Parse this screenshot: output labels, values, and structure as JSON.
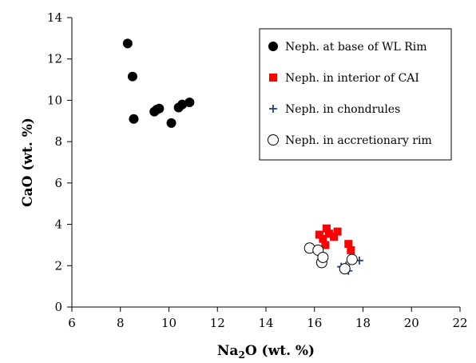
{
  "chart_data": {
    "type": "scatter",
    "xlabel": {
      "main": "Na",
      "sub": "2",
      "rest": "O (wt. %)"
    },
    "ylabel": "CaO (wt. %)",
    "xlim": [
      6,
      22
    ],
    "ylim": [
      0,
      14
    ],
    "xticks": [
      6,
      8,
      10,
      12,
      14,
      16,
      18,
      20,
      22
    ],
    "yticks": [
      0,
      2,
      4,
      6,
      8,
      10,
      12,
      14
    ],
    "grid": false,
    "legend_position": "top-right",
    "series": [
      {
        "name": "Neph. at base of WL Rim",
        "marker": "filled-circle",
        "color": "#000000",
        "points": [
          [
            8.3,
            12.75
          ],
          [
            8.5,
            11.15
          ],
          [
            8.55,
            9.1
          ],
          [
            9.4,
            9.45
          ],
          [
            9.5,
            9.55
          ],
          [
            9.6,
            9.6
          ],
          [
            10.1,
            8.9
          ],
          [
            10.4,
            9.65
          ],
          [
            10.55,
            9.8
          ],
          [
            10.85,
            9.9
          ]
        ]
      },
      {
        "name": "Neph. in interior of CAI",
        "marker": "filled-square",
        "color": "#ff0000",
        "points": [
          [
            16.2,
            3.5
          ],
          [
            16.35,
            3.3
          ],
          [
            16.45,
            3.0
          ],
          [
            16.5,
            3.8
          ],
          [
            16.6,
            3.55
          ],
          [
            16.8,
            3.4
          ],
          [
            16.95,
            3.65
          ],
          [
            17.4,
            3.05
          ],
          [
            17.5,
            2.75
          ]
        ]
      },
      {
        "name": "Neph. in chondrules",
        "marker": "plus",
        "color": "#1f3f7f",
        "points": [
          [
            17.1,
            1.95
          ],
          [
            17.3,
            2.0
          ],
          [
            17.4,
            1.75
          ],
          [
            17.55,
            2.25
          ],
          [
            17.85,
            2.25
          ]
        ]
      },
      {
        "name": "Neph. in accretionary rim",
        "marker": "open-circle",
        "color": "#000000",
        "points": [
          [
            15.8,
            2.85
          ],
          [
            16.15,
            2.75
          ],
          [
            16.3,
            2.15
          ],
          [
            16.35,
            2.4
          ],
          [
            17.25,
            1.85
          ],
          [
            17.55,
            2.3
          ]
        ]
      }
    ]
  }
}
